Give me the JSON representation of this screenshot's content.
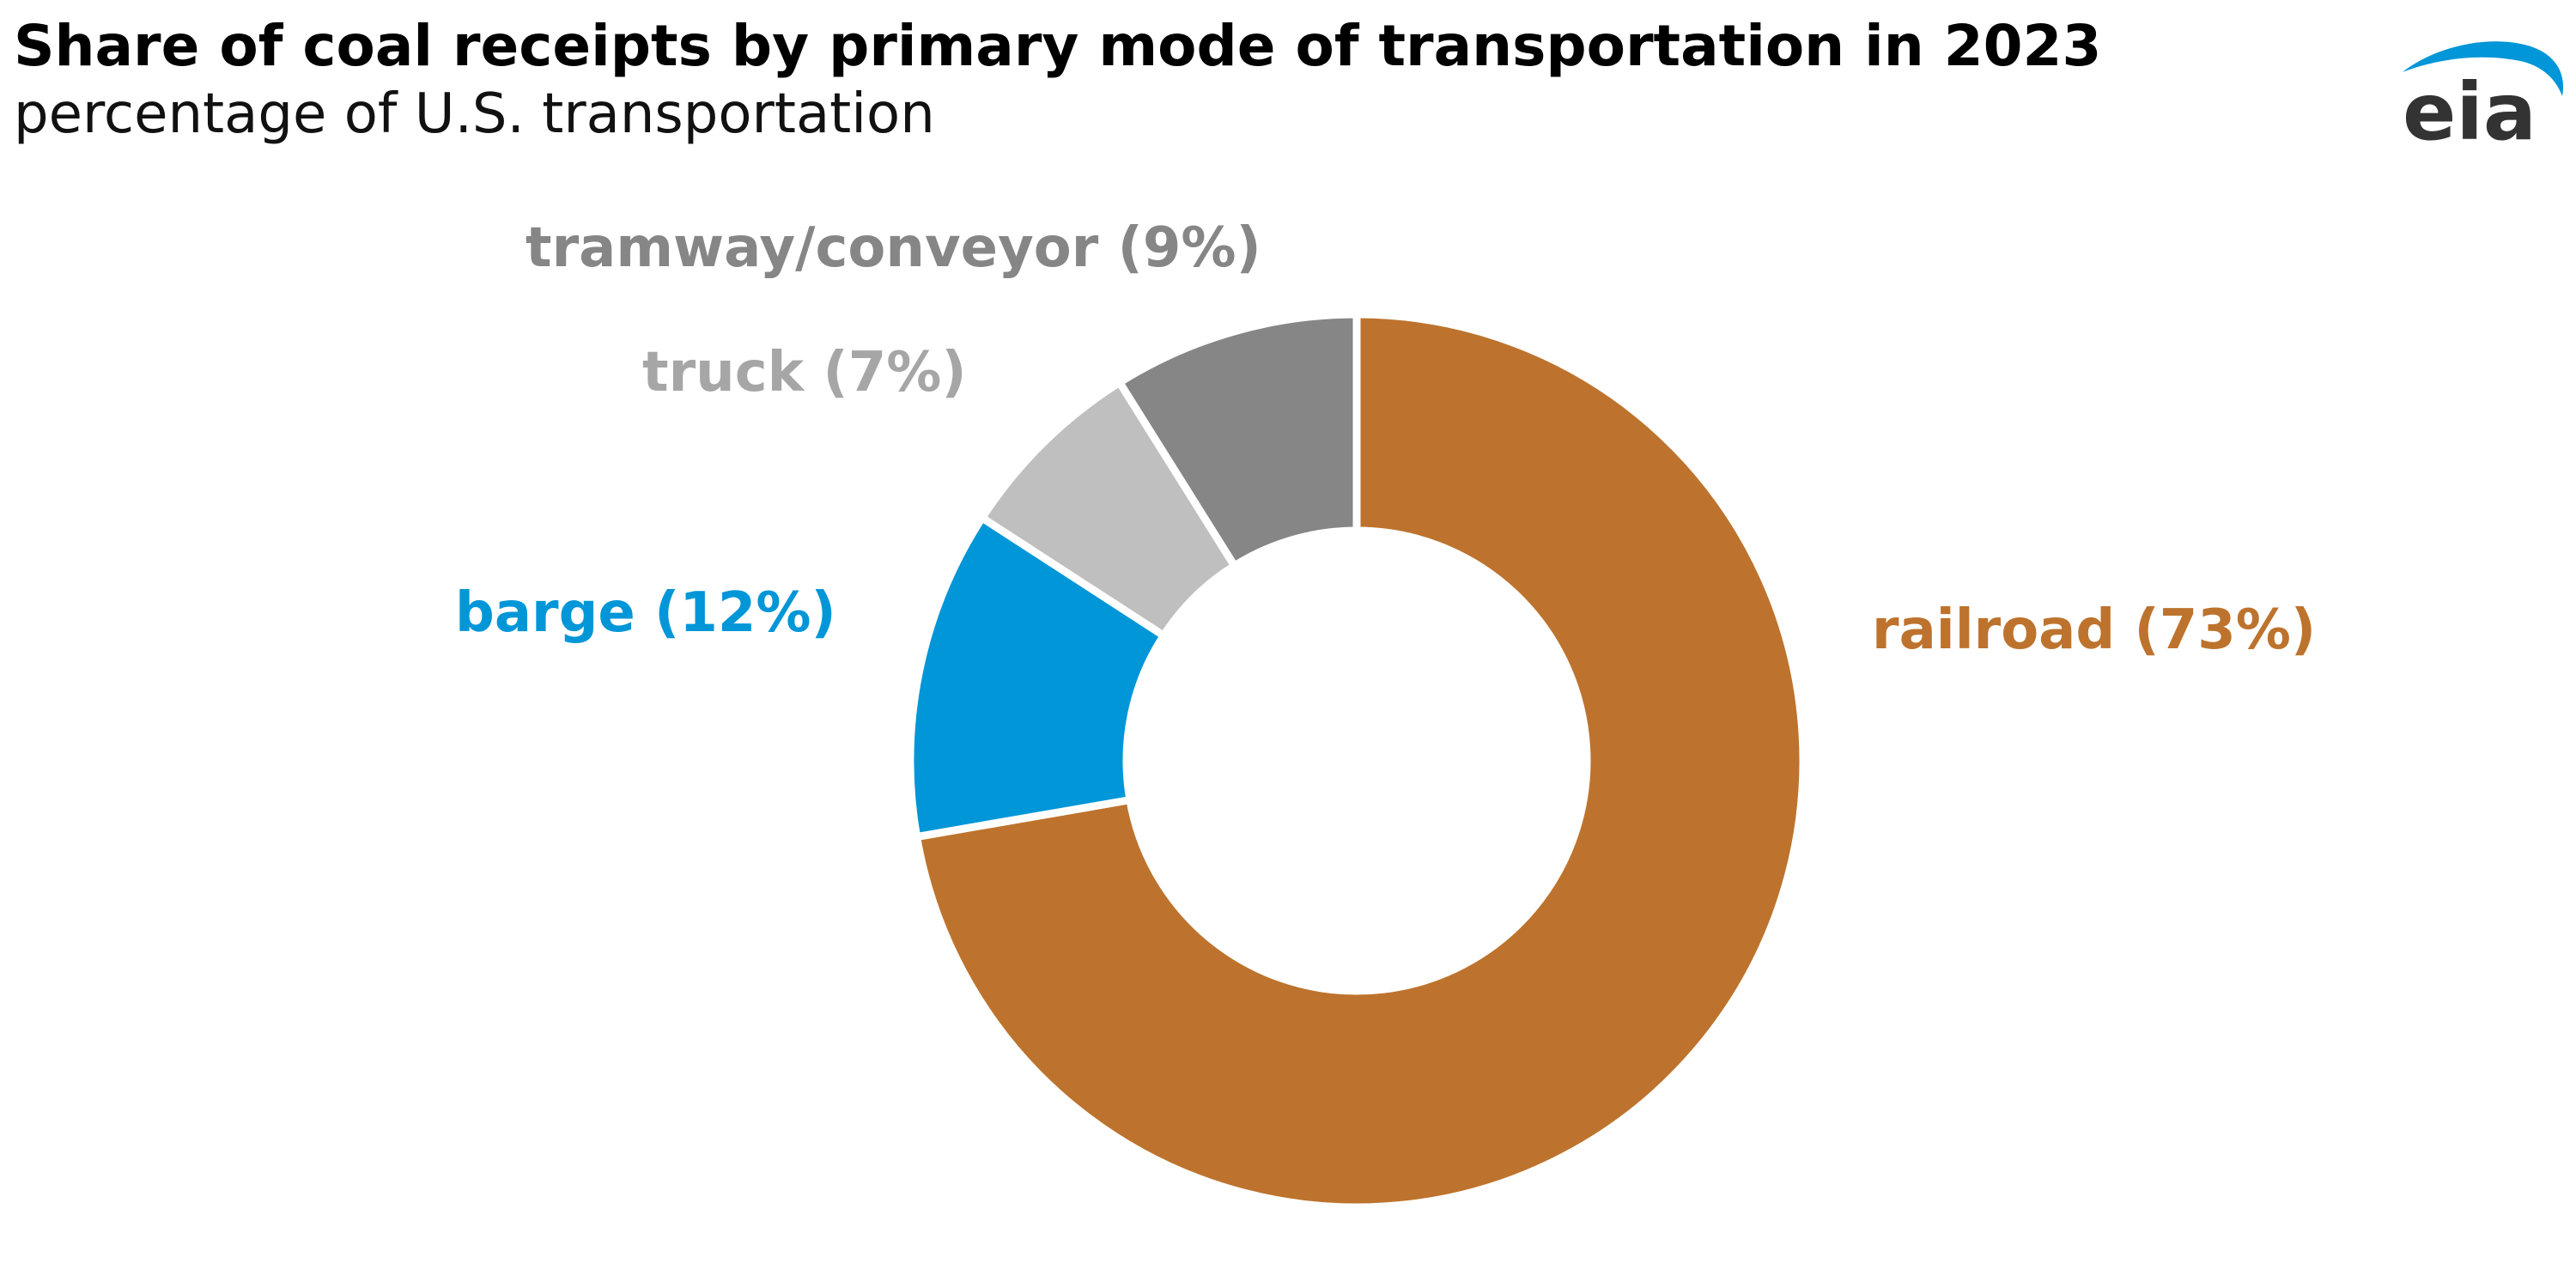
{
  "header": {
    "title": "Share of coal receipts by primary mode of transportation in 2023",
    "subtitle": "percentage of U.S. transportation"
  },
  "logo": {
    "text": "eia",
    "accent_color": "#0096D7",
    "text_color": "#333333"
  },
  "chart_data": {
    "type": "pie",
    "donut": true,
    "title": "Share of coal receipts by primary mode of transportation in 2023",
    "subtitle": "percentage of U.S. transportation",
    "slices": [
      {
        "name": "railroad",
        "value": 73,
        "label": "railroad (73%)",
        "color": "#BD732D"
      },
      {
        "name": "barge",
        "value": 12,
        "label": "barge (12%)",
        "color": "#0096D7"
      },
      {
        "name": "truck",
        "value": 7,
        "label": "truck (7%)",
        "color": "#BFBFBF"
      },
      {
        "name": "tramway/conveyor",
        "value": 9,
        "label": "tramway/conveyor (9%)",
        "color": "#868686"
      }
    ],
    "label_colors": {
      "railroad": "#BD732D",
      "barge": "#0096D7",
      "truck": "#A6A6A6",
      "tramway/conveyor": "#868686"
    },
    "legend": "none",
    "grid": false
  }
}
